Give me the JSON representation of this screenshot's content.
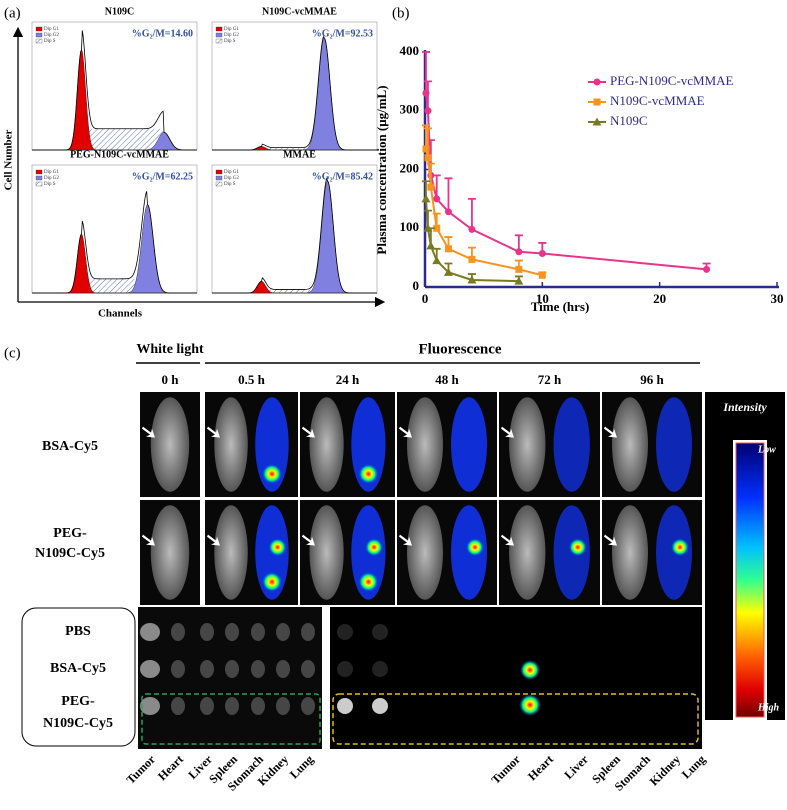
{
  "panel_a": {
    "label": "(a)",
    "y_label": "Cell Number",
    "x_label": "Channels",
    "legend": [
      "Dip G1",
      "Dip G2",
      "Dip S"
    ],
    "plots": [
      {
        "title": "N109C",
        "stat": "%G₂/M=14.60"
      },
      {
        "title": "N109C-vcMMAE",
        "stat": "%G₂/M=92.53"
      },
      {
        "title": "PEG-N109C-vcMMAE",
        "stat": "%G₂/M=62.25"
      },
      {
        "title": "MMAE",
        "stat": "%G₂/M=85.42"
      }
    ]
  },
  "chart_data": {
    "type": "line",
    "label": "(b)",
    "x_label": "Time (hrs)",
    "y_label": "Plasma concentration (μg/mL)",
    "xlim": [
      0,
      30
    ],
    "xticks": [
      0,
      10,
      20,
      30
    ],
    "ylim": [
      0,
      400
    ],
    "yticks": [
      0,
      100,
      200,
      300,
      400
    ],
    "series": [
      {
        "name": "PEG-N109C-vcMMAE",
        "color": "#e8348a",
        "marker": "circle",
        "x": [
          0.083,
          0.25,
          0.5,
          1,
          2,
          4,
          8,
          10,
          24
        ],
        "values": [
          330,
          300,
          190,
          150,
          128,
          98,
          60,
          57,
          30
        ],
        "errors": [
          70,
          50,
          60,
          40,
          57,
          52,
          28,
          18,
          10
        ]
      },
      {
        "name": "N109C-vcMMAE",
        "color": "#f7931e",
        "marker": "square",
        "x": [
          0.083,
          0.25,
          0.5,
          1,
          2,
          4,
          8,
          10
        ],
        "values": [
          235,
          220,
          170,
          100,
          65,
          47,
          30,
          20
        ],
        "errors": [
          40,
          50,
          40,
          25,
          20,
          20,
          15,
          5
        ]
      },
      {
        "name": "N109C",
        "color": "#7a7a20",
        "marker": "triangle",
        "x": [
          0.083,
          0.25,
          0.5,
          1,
          2,
          4,
          8
        ],
        "values": [
          150,
          100,
          70,
          45,
          25,
          12,
          10
        ],
        "errors": [
          30,
          30,
          30,
          20,
          15,
          10,
          8
        ]
      }
    ]
  },
  "panel_c": {
    "label": "(c)",
    "white_light": "White light",
    "fluorescence": "Fluorescence",
    "times": [
      "0 h",
      "0.5 h",
      "24 h",
      "48 h",
      "72 h",
      "96 h"
    ],
    "rows": [
      [
        "BSA-Cy5"
      ],
      [
        "PEG-",
        "N109C-Cy5"
      ]
    ],
    "intensity": "Intensity",
    "low": "Low",
    "high": "High",
    "organ_rows": [
      [
        "PBS"
      ],
      [
        "BSA-Cy5"
      ],
      [
        "PEG-",
        "N109C-Cy5"
      ]
    ],
    "organs": [
      "Tumor",
      "Heart",
      "Liver",
      "Spleen",
      "Stomach",
      "Kidney",
      "Lung"
    ]
  }
}
